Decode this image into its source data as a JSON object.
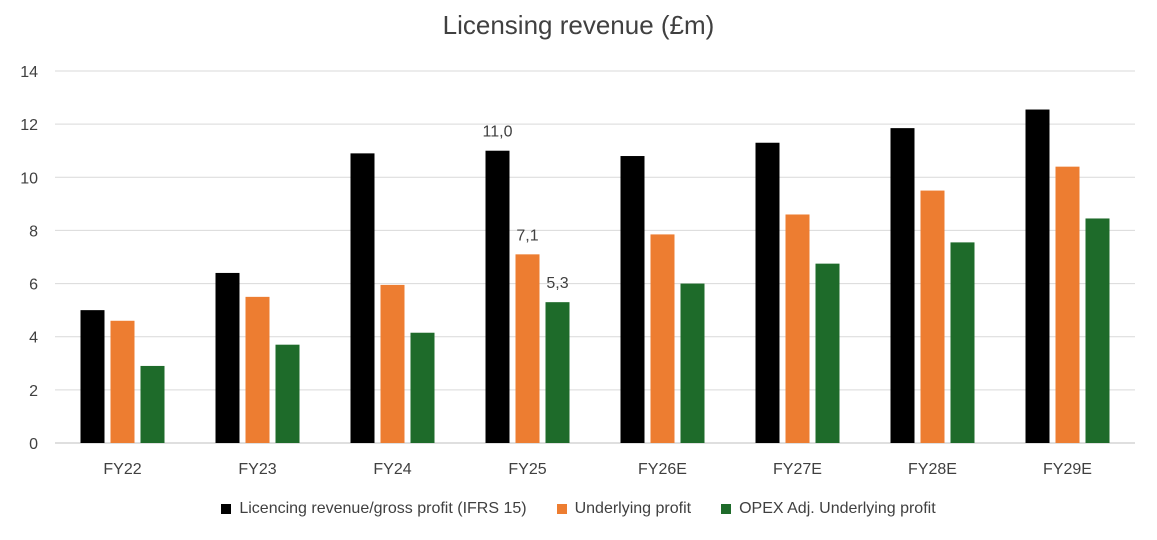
{
  "chart_data": {
    "type": "bar",
    "title": "Licensing revenue (£m)",
    "xlabel": "",
    "ylabel": "",
    "ylim": [
      0,
      14
    ],
    "yticks": [
      0,
      2,
      4,
      6,
      8,
      10,
      12,
      14
    ],
    "grid": true,
    "legend_position": "bottom",
    "categories": [
      "FY22",
      "FY23",
      "FY24",
      "FY25",
      "FY26E",
      "FY27E",
      "FY28E",
      "FY29E"
    ],
    "series": [
      {
        "name": "Licencing revenue/gross profit (IFRS 15)",
        "color": "#000000",
        "values": [
          5.0,
          6.4,
          10.9,
          11.0,
          10.8,
          11.3,
          11.85,
          12.55
        ]
      },
      {
        "name": "Underlying profit",
        "color": "#ED7D31",
        "values": [
          4.6,
          5.5,
          5.95,
          7.1,
          7.85,
          8.6,
          9.5,
          10.4
        ]
      },
      {
        "name": "OPEX Adj. Underlying profit",
        "color": "#1E6B2A",
        "values": [
          2.9,
          3.7,
          4.15,
          5.3,
          6.0,
          6.75,
          7.55,
          8.45
        ]
      }
    ],
    "data_labels": [
      {
        "series": 0,
        "category": "FY25",
        "text": "11,0"
      },
      {
        "series": 1,
        "category": "FY25",
        "text": "7,1"
      },
      {
        "series": 2,
        "category": "FY25",
        "text": "5,3"
      }
    ]
  }
}
